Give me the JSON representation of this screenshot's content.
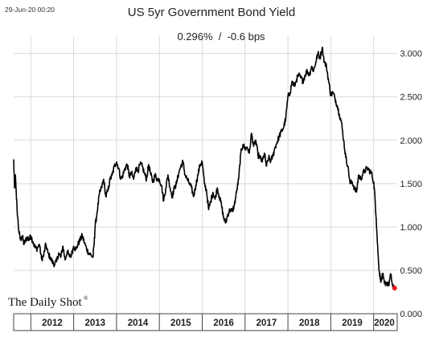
{
  "header": {
    "timestamp": "29-Jun-20 00:20",
    "title": "US 5yr Government Bond Yield",
    "subtitle": "0.296%  /  -0.6 bps"
  },
  "branding": {
    "logo_text": "The Daily Shot",
    "logo_mark": "®"
  },
  "chart_data": {
    "type": "line",
    "title": "US 5yr Government Bond Yield",
    "xlabel": "",
    "ylabel": "",
    "xlim": [
      2011.6,
      2020.55
    ],
    "ylim": [
      0.0,
      3.2
    ],
    "y_ticks": [
      0.0,
      0.5,
      1.0,
      1.5,
      2.0,
      2.5,
      3.0
    ],
    "y_tick_labels": [
      "0.000",
      "0.500",
      "1.000",
      "1.500",
      "2.000",
      "2.500",
      "3.000"
    ],
    "x_tick_labels": [
      "2012",
      "2013",
      "2014",
      "2015",
      "2016",
      "2017",
      "2018",
      "2019",
      "2020"
    ],
    "x_tick_label_positions": [
      2012.5,
      2013.5,
      2014.5,
      2015.5,
      2016.5,
      2017.5,
      2018.5,
      2019.5,
      2020.25
    ],
    "x_boundaries": [
      2012.0,
      2013.0,
      2014.0,
      2015.0,
      2016.0,
      2017.0,
      2018.0,
      2019.0,
      2020.0
    ],
    "grid": true,
    "line_color": "#000000",
    "last_point_color": "#e41a1c",
    "series": [
      {
        "x": [
          2011.6,
          2011.62,
          2011.64,
          2011.66,
          2011.68,
          2011.72,
          2011.76,
          2011.8,
          2011.84,
          2011.88,
          2011.92,
          2011.96,
          2012.0,
          2012.05,
          2012.1,
          2012.15,
          2012.2,
          2012.25,
          2012.3,
          2012.35,
          2012.4,
          2012.45,
          2012.5,
          2012.55,
          2012.6,
          2012.65,
          2012.7,
          2012.75,
          2012.8,
          2012.85,
          2012.9,
          2012.95,
          2013.0,
          2013.05,
          2013.1,
          2013.15,
          2013.2,
          2013.25,
          2013.3,
          2013.35,
          2013.4,
          2013.45,
          2013.48,
          2013.5,
          2013.55,
          2013.6,
          2013.65,
          2013.7,
          2013.75,
          2013.8,
          2013.85,
          2013.9,
          2013.95,
          2014.0,
          2014.05,
          2014.1,
          2014.15,
          2014.2,
          2014.25,
          2014.3,
          2014.35,
          2014.4,
          2014.45,
          2014.5,
          2014.55,
          2014.6,
          2014.65,
          2014.7,
          2014.75,
          2014.8,
          2014.85,
          2014.9,
          2014.95,
          2015.0,
          2015.05,
          2015.1,
          2015.15,
          2015.2,
          2015.25,
          2015.3,
          2015.35,
          2015.4,
          2015.45,
          2015.5,
          2015.55,
          2015.6,
          2015.65,
          2015.7,
          2015.75,
          2015.8,
          2015.85,
          2015.9,
          2015.95,
          2016.0,
          2016.05,
          2016.1,
          2016.15,
          2016.2,
          2016.25,
          2016.3,
          2016.35,
          2016.4,
          2016.45,
          2016.5,
          2016.55,
          2016.6,
          2016.65,
          2016.7,
          2016.75,
          2016.8,
          2016.85,
          2016.9,
          2016.95,
          2017.0,
          2017.05,
          2017.1,
          2017.15,
          2017.2,
          2017.25,
          2017.3,
          2017.35,
          2017.4,
          2017.45,
          2017.5,
          2017.55,
          2017.6,
          2017.65,
          2017.7,
          2017.75,
          2017.8,
          2017.85,
          2017.9,
          2017.95,
          2018.0,
          2018.05,
          2018.1,
          2018.15,
          2018.2,
          2018.25,
          2018.3,
          2018.35,
          2018.4,
          2018.45,
          2018.5,
          2018.55,
          2018.6,
          2018.65,
          2018.7,
          2018.75,
          2018.8,
          2018.85,
          2018.9,
          2018.95,
          2019.0,
          2019.05,
          2019.1,
          2019.15,
          2019.2,
          2019.25,
          2019.3,
          2019.35,
          2019.4,
          2019.45,
          2019.5,
          2019.55,
          2019.6,
          2019.65,
          2019.7,
          2019.75,
          2019.8,
          2019.85,
          2019.9,
          2019.95,
          2020.0,
          2020.03,
          2020.06,
          2020.09,
          2020.12,
          2020.15,
          2020.18,
          2020.21,
          2020.25,
          2020.3,
          2020.35,
          2020.4,
          2020.45,
          2020.49
        ],
        "y": [
          1.78,
          1.45,
          1.6,
          1.4,
          1.2,
          0.95,
          0.85,
          0.9,
          0.8,
          0.85,
          0.88,
          0.85,
          0.9,
          0.83,
          0.76,
          0.75,
          0.8,
          0.63,
          0.67,
          0.8,
          0.7,
          0.65,
          0.6,
          0.57,
          0.6,
          0.7,
          0.65,
          0.78,
          0.62,
          0.72,
          0.66,
          0.68,
          0.78,
          0.74,
          0.8,
          0.85,
          0.9,
          0.82,
          0.75,
          0.7,
          0.68,
          0.65,
          0.82,
          1.0,
          1.18,
          1.38,
          1.45,
          1.55,
          1.35,
          1.42,
          1.55,
          1.6,
          1.7,
          1.75,
          1.68,
          1.55,
          1.6,
          1.68,
          1.72,
          1.58,
          1.62,
          1.55,
          1.68,
          1.65,
          1.72,
          1.7,
          1.62,
          1.55,
          1.72,
          1.6,
          1.52,
          1.6,
          1.55,
          1.55,
          1.48,
          1.3,
          1.45,
          1.6,
          1.45,
          1.35,
          1.45,
          1.5,
          1.62,
          1.7,
          1.75,
          1.6,
          1.55,
          1.5,
          1.45,
          1.35,
          1.48,
          1.6,
          1.72,
          1.75,
          1.5,
          1.42,
          1.2,
          1.3,
          1.4,
          1.32,
          1.45,
          1.35,
          1.25,
          1.1,
          1.05,
          1.15,
          1.2,
          1.18,
          1.25,
          1.4,
          1.55,
          1.85,
          1.95,
          1.9,
          1.92,
          1.85,
          2.08,
          1.93,
          2.0,
          1.83,
          1.8,
          1.75,
          1.85,
          1.7,
          1.8,
          1.76,
          1.82,
          1.92,
          1.98,
          2.05,
          2.1,
          2.15,
          2.25,
          2.5,
          2.55,
          2.68,
          2.62,
          2.7,
          2.75,
          2.72,
          2.68,
          2.75,
          2.8,
          2.75,
          2.85,
          2.8,
          2.9,
          3.0,
          2.95,
          3.07,
          2.9,
          2.85,
          2.68,
          2.52,
          2.55,
          2.48,
          2.4,
          2.3,
          2.2,
          2.0,
          1.8,
          1.7,
          1.5,
          1.52,
          1.45,
          1.4,
          1.6,
          1.55,
          1.62,
          1.65,
          1.68,
          1.65,
          1.62,
          1.52,
          1.35,
          1.1,
          0.8,
          0.55,
          0.42,
          0.38,
          0.45,
          0.35,
          0.36,
          0.33,
          0.45,
          0.3,
          0.296
        ]
      }
    ],
    "last_point": {
      "x": 2020.49,
      "y": 0.296
    }
  }
}
